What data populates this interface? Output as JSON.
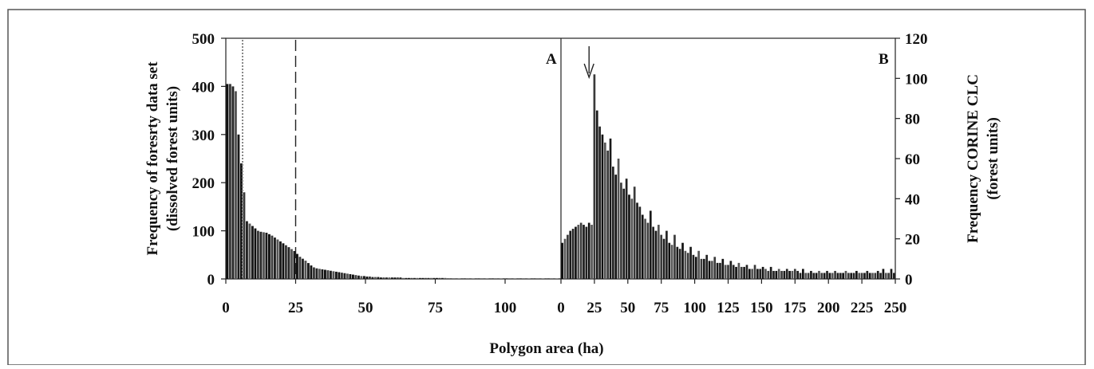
{
  "chart_data": [
    {
      "panel_label": "A",
      "type": "bar",
      "ylabel": "Frequency of foresrty data set (dissolved forest units)",
      "xlim": [
        0,
        120
      ],
      "ylim": [
        0,
        500
      ],
      "xticks": [
        "0",
        "25",
        "50",
        "75",
        "100"
      ],
      "yticks": [
        "0",
        "100",
        "200",
        "300",
        "400",
        "500"
      ],
      "reference_lines": [
        {
          "x": 6,
          "style": "dotted"
        },
        {
          "x": 25,
          "style": "dashed"
        }
      ],
      "series": [
        {
          "x": [
            0,
            1,
            2,
            3,
            4,
            5,
            6,
            7,
            8,
            9,
            10,
            11,
            12,
            13,
            14,
            15,
            16,
            17,
            18,
            19,
            20,
            21,
            22,
            23,
            24,
            25,
            26,
            27,
            28,
            29,
            30,
            31,
            32,
            33,
            34,
            35,
            36,
            37,
            38,
            39,
            40,
            41,
            42,
            43,
            44,
            45,
            46,
            47,
            48,
            49,
            50,
            51,
            52,
            53,
            54,
            55,
            56,
            57,
            58,
            59,
            60,
            61,
            62,
            63,
            64,
            65,
            66,
            67,
            68,
            69,
            70,
            71,
            72,
            73,
            74,
            75,
            76,
            77,
            78,
            79,
            80,
            81,
            82,
            83,
            84,
            85,
            86,
            87,
            88,
            89,
            90,
            91,
            92,
            93,
            94,
            95,
            96,
            97,
            98,
            99,
            100,
            101,
            102,
            103,
            104,
            105,
            106,
            107,
            108,
            109,
            110,
            111,
            112,
            113,
            114,
            115,
            116,
            117,
            118,
            119
          ],
          "values": [
            405,
            405,
            400,
            390,
            300,
            240,
            180,
            120,
            115,
            110,
            105,
            100,
            98,
            97,
            96,
            93,
            90,
            86,
            82,
            78,
            74,
            70,
            66,
            62,
            58,
            52,
            46,
            42,
            38,
            33,
            28,
            24,
            22,
            21,
            20,
            19,
            18,
            17,
            16,
            15,
            14,
            13,
            12,
            11,
            10,
            9,
            8,
            7,
            6,
            6,
            5,
            5,
            4,
            4,
            4,
            3,
            3,
            3,
            3,
            3,
            3,
            3,
            3,
            2,
            2,
            2,
            2,
            2,
            2,
            2,
            2,
            2,
            2,
            2,
            2,
            2,
            2,
            2,
            2,
            1,
            1,
            1,
            1,
            1,
            1,
            1,
            1,
            1,
            1,
            1,
            1,
            1,
            1,
            1,
            1,
            1,
            1,
            1,
            1,
            1,
            1,
            1,
            1,
            1,
            1,
            1,
            1,
            1,
            1,
            1,
            1,
            1,
            1,
            1,
            1,
            1,
            1,
            1,
            1,
            1
          ]
        }
      ]
    },
    {
      "panel_label": "B",
      "type": "bar",
      "ylabel": "Frequency CORINE CLC (forest units)",
      "xlabel": "Polygon area (ha)",
      "xlim": [
        0,
        250
      ],
      "ylim": [
        0,
        120
      ],
      "xticks": [
        "0",
        "25",
        "50",
        "75",
        "100",
        "125",
        "150",
        "175",
        "200",
        "225",
        "250"
      ],
      "yticks": [
        "0",
        "20",
        "40",
        "60",
        "80",
        "100",
        "120"
      ],
      "arrow_x": 21,
      "series": [
        {
          "x": [
            1,
            3,
            5,
            7,
            9,
            11,
            13,
            15,
            17,
            19,
            21,
            23,
            25,
            27,
            29,
            31,
            33,
            35,
            37,
            39,
            41,
            43,
            45,
            47,
            49,
            51,
            53,
            55,
            57,
            59,
            61,
            63,
            65,
            67,
            69,
            71,
            73,
            75,
            77,
            79,
            81,
            83,
            85,
            87,
            89,
            91,
            93,
            95,
            97,
            99,
            101,
            103,
            105,
            107,
            109,
            111,
            113,
            115,
            117,
            119,
            121,
            123,
            125,
            127,
            129,
            131,
            133,
            135,
            137,
            139,
            141,
            143,
            145,
            147,
            149,
            151,
            153,
            155,
            157,
            159,
            161,
            163,
            165,
            167,
            169,
            171,
            173,
            175,
            177,
            179,
            181,
            183,
            185,
            187,
            189,
            191,
            193,
            195,
            197,
            199,
            201,
            203,
            205,
            207,
            209,
            211,
            213,
            215,
            217,
            219,
            221,
            223,
            225,
            227,
            229,
            231,
            233,
            235,
            237,
            239,
            241,
            243,
            245,
            247,
            249
          ],
          "values": [
            18,
            20,
            22,
            24,
            25,
            26,
            27,
            28,
            27,
            26,
            28,
            27,
            102,
            84,
            76,
            72,
            68,
            64,
            70,
            56,
            52,
            60,
            48,
            45,
            50,
            42,
            40,
            46,
            38,
            36,
            32,
            30,
            28,
            34,
            26,
            24,
            27,
            22,
            20,
            24,
            18,
            17,
            22,
            16,
            15,
            18,
            14,
            13,
            16,
            12,
            11,
            14,
            10,
            10,
            12,
            9,
            9,
            11,
            8,
            8,
            10,
            7,
            7,
            9,
            7,
            6,
            8,
            6,
            6,
            7,
            5,
            5,
            7,
            5,
            5,
            6,
            5,
            4,
            6,
            4,
            4,
            5,
            4,
            4,
            5,
            4,
            4,
            5,
            4,
            3,
            5,
            3,
            3,
            4,
            3,
            3,
            4,
            3,
            3,
            4,
            3,
            3,
            4,
            3,
            3,
            3,
            4,
            3,
            3,
            3,
            4,
            3,
            3,
            3,
            4,
            3,
            3,
            3,
            4,
            3,
            5,
            3,
            3,
            5,
            3
          ]
        }
      ]
    }
  ]
}
